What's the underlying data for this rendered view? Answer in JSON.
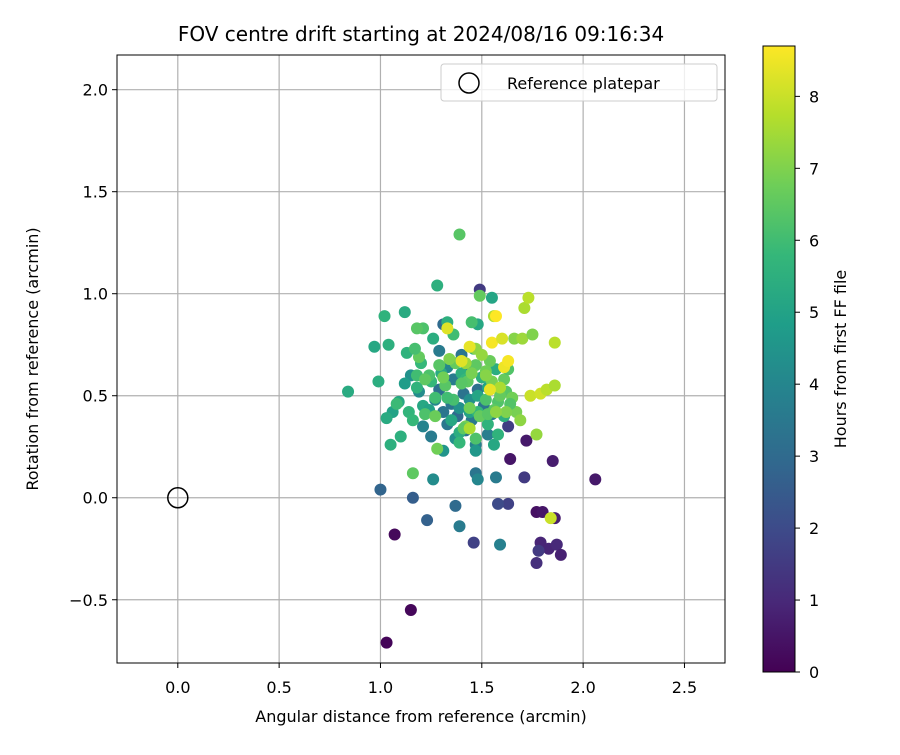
{
  "chart_data": {
    "type": "scatter",
    "title": "FOV centre drift starting at 2024/08/16 09:16:34",
    "xlabel": "Angular distance from reference (arcmin)",
    "ylabel": "Rotation from reference (arcmin)",
    "xlim": [
      -0.3,
      2.7
    ],
    "ylim": [
      -0.81,
      2.17
    ],
    "xticks": [
      0.0,
      0.5,
      1.0,
      1.5,
      2.0,
      2.5
    ],
    "xtick_labels": [
      "0.0",
      "0.5",
      "1.0",
      "1.5",
      "2.0",
      "2.5"
    ],
    "yticks": [
      -0.5,
      0.0,
      0.5,
      1.0,
      1.5,
      2.0
    ],
    "ytick_labels": [
      "−0.5",
      "0.0",
      "0.5",
      "1.0",
      "1.5",
      "2.0"
    ],
    "grid": true,
    "legend": {
      "placement": "top-right",
      "entries": [
        "Reference platepar"
      ]
    },
    "reference_point": {
      "x": 0.0,
      "y": 0.0,
      "label": "Reference platepar"
    },
    "colorbar": {
      "label": "Hours from first FF file",
      "min": 0,
      "max": 8.7,
      "colormap": "viridis",
      "ticks": [
        0,
        1,
        2,
        3,
        4,
        5,
        6,
        7,
        8
      ],
      "tick_labels": [
        "0",
        "1",
        "2",
        "3",
        "4",
        "5",
        "6",
        "7",
        "8"
      ]
    },
    "colormap_stops": [
      "#440154",
      "#482878",
      "#3e4989",
      "#31688e",
      "#26828e",
      "#1f9e89",
      "#35b779",
      "#6ece58",
      "#b5de2b",
      "#fde725"
    ],
    "points": [
      [
        1.03,
        -0.71,
        0.1
      ],
      [
        1.15,
        -0.55,
        0.15
      ],
      [
        1.07,
        -0.18,
        0.2
      ],
      [
        1.64,
        0.19,
        0.5
      ],
      [
        1.72,
        0.28,
        0.6
      ],
      [
        1.77,
        -0.07,
        0.4
      ],
      [
        1.8,
        -0.07,
        0.5
      ],
      [
        1.79,
        -0.22,
        0.9
      ],
      [
        1.83,
        -0.25,
        0.9
      ],
      [
        1.87,
        -0.23,
        1.0
      ],
      [
        1.89,
        -0.28,
        0.8
      ],
      [
        1.86,
        -0.1,
        0.7
      ],
      [
        2.06,
        0.09,
        0.6
      ],
      [
        1.85,
        0.18,
        0.7
      ],
      [
        1.77,
        -0.32,
        1.2
      ],
      [
        1.78,
        -0.26,
        1.5
      ],
      [
        1.46,
        -0.22,
        1.7
      ],
      [
        1.63,
        -0.03,
        1.7
      ],
      [
        1.58,
        -0.03,
        2.0
      ],
      [
        1.71,
        0.1,
        1.5
      ],
      [
        1.49,
        1.02,
        1.5
      ],
      [
        1.63,
        0.35,
        1.6
      ],
      [
        1.0,
        0.04,
        2.8
      ],
      [
        1.16,
        0.0,
        2.6
      ],
      [
        1.23,
        -0.11,
        2.7
      ],
      [
        1.37,
        -0.04,
        3.0
      ],
      [
        1.39,
        -0.14,
        3.6
      ],
      [
        1.59,
        -0.23,
        3.8
      ],
      [
        1.57,
        0.1,
        3.6
      ],
      [
        1.47,
        0.12,
        3.4
      ],
      [
        1.48,
        0.09,
        4.0
      ],
      [
        1.26,
        0.09,
        4.2
      ],
      [
        1.35,
        0.46,
        3.4
      ],
      [
        1.42,
        0.33,
        3.2
      ],
      [
        1.38,
        0.4,
        3.0
      ],
      [
        1.45,
        0.38,
        3.5
      ],
      [
        1.31,
        0.42,
        3.4
      ],
      [
        1.29,
        0.53,
        3.2
      ],
      [
        1.33,
        0.36,
        3.5
      ],
      [
        1.41,
        0.51,
        3.3
      ],
      [
        1.51,
        0.45,
        3.4
      ],
      [
        1.36,
        0.58,
        3.6
      ],
      [
        1.44,
        0.62,
        3.4
      ],
      [
        1.27,
        0.48,
        4.0
      ],
      [
        1.21,
        0.35,
        3.9
      ],
      [
        1.25,
        0.3,
        3.6
      ],
      [
        1.37,
        0.29,
        4.3
      ],
      [
        1.47,
        0.26,
        3.8
      ],
      [
        1.53,
        0.31,
        3.7
      ],
      [
        1.55,
        0.41,
        3.6
      ],
      [
        1.48,
        0.53,
        3.2
      ],
      [
        1.4,
        0.7,
        3.4
      ],
      [
        1.31,
        0.85,
        3.0
      ],
      [
        1.29,
        0.72,
        3.6
      ],
      [
        1.19,
        0.52,
        4.2
      ],
      [
        1.15,
        0.6,
        4.4
      ],
      [
        1.33,
        0.64,
        4.0
      ],
      [
        1.39,
        0.44,
        4.4
      ],
      [
        1.44,
        0.48,
        4.3
      ],
      [
        1.47,
        0.23,
        4.6
      ],
      [
        1.31,
        0.23,
        4.5
      ],
      [
        1.12,
        0.56,
        4.8
      ],
      [
        1.06,
        0.42,
        5.0
      ],
      [
        1.09,
        0.47,
        5.2
      ],
      [
        1.03,
        0.39,
        5.3
      ],
      [
        1.1,
        0.3,
        5.5
      ],
      [
        0.99,
        0.57,
        5.4
      ],
      [
        0.97,
        0.74,
        5.2
      ],
      [
        1.04,
        0.75,
        5.5
      ],
      [
        1.02,
        0.89,
        5.6
      ],
      [
        1.12,
        0.91,
        5.3
      ],
      [
        1.13,
        0.71,
        5.6
      ],
      [
        1.2,
        0.66,
        5.8
      ],
      [
        1.26,
        0.78,
        5.4
      ],
      [
        1.28,
        1.04,
        5.5
      ],
      [
        1.21,
        0.45,
        5.2
      ],
      [
        1.18,
        0.54,
        5.6
      ],
      [
        1.25,
        0.57,
        5.8
      ],
      [
        1.3,
        0.61,
        5.3
      ],
      [
        1.24,
        0.43,
        5.0
      ],
      [
        1.14,
        0.42,
        5.7
      ],
      [
        1.08,
        0.46,
        5.9
      ],
      [
        1.05,
        0.26,
        5.5
      ],
      [
        1.16,
        0.38,
        5.8
      ],
      [
        1.35,
        0.38,
        5.2
      ],
      [
        1.39,
        0.32,
        5.4
      ],
      [
        1.48,
        0.5,
        5.1
      ],
      [
        1.53,
        0.54,
        5.0
      ],
      [
        1.5,
        0.59,
        5.5
      ],
      [
        1.57,
        0.63,
        5.4
      ],
      [
        1.46,
        0.73,
        5.7
      ],
      [
        1.55,
        0.98,
        5.1
      ],
      [
        1.48,
        0.85,
        5.2
      ],
      [
        1.4,
        0.61,
        5.5
      ],
      [
        1.42,
        0.58,
        5.8
      ],
      [
        1.44,
        0.42,
        5.0
      ],
      [
        1.56,
        0.26,
        5.2
      ],
      [
        1.53,
        0.36,
        5.6
      ],
      [
        0.84,
        0.52,
        5.3
      ],
      [
        1.33,
        0.86,
        5.5
      ],
      [
        1.39,
        0.27,
        5.8
      ],
      [
        1.58,
        0.31,
        5.6
      ],
      [
        1.61,
        0.4,
        5.5
      ],
      [
        1.48,
        0.42,
        5.8
      ],
      [
        1.18,
        0.6,
        6.0
      ],
      [
        1.22,
        0.41,
        6.2
      ],
      [
        1.27,
        0.49,
        6.0
      ],
      [
        1.32,
        0.55,
        6.4
      ],
      [
        1.36,
        0.48,
        6.1
      ],
      [
        1.43,
        0.57,
        6.5
      ],
      [
        1.49,
        0.4,
        6.6
      ],
      [
        1.52,
        0.48,
        6.2
      ],
      [
        1.58,
        0.47,
        6.3
      ],
      [
        1.62,
        0.52,
        6.4
      ],
      [
        1.65,
        0.49,
        6.8
      ],
      [
        1.67,
        0.42,
        6.9
      ],
      [
        1.54,
        0.67,
        6.7
      ],
      [
        1.47,
        0.65,
        6.5
      ],
      [
        1.37,
        0.66,
        6.6
      ],
      [
        1.31,
        0.59,
        6.8
      ],
      [
        1.29,
        0.65,
        6.4
      ],
      [
        1.24,
        0.6,
        6.2
      ],
      [
        1.19,
        0.69,
        6.6
      ],
      [
        1.17,
        0.73,
        6.1
      ],
      [
        1.22,
        0.58,
        6.5
      ],
      [
        1.27,
        0.4,
        6.7
      ],
      [
        1.33,
        0.49,
        6.0
      ],
      [
        1.4,
        0.56,
        6.4
      ],
      [
        1.45,
        0.61,
        6.9
      ],
      [
        1.52,
        0.62,
        6.8
      ],
      [
        1.55,
        0.57,
        6.9
      ],
      [
        1.61,
        0.58,
        6.6
      ],
      [
        1.64,
        0.46,
        6.3
      ],
      [
        1.56,
        0.43,
        6.5
      ],
      [
        1.44,
        0.44,
        6.8
      ],
      [
        1.42,
        0.35,
        6.9
      ],
      [
        1.47,
        0.29,
        6.2
      ],
      [
        1.53,
        0.41,
        6.4
      ],
      [
        1.59,
        0.5,
        6.6
      ],
      [
        1.16,
        0.12,
        6.5
      ],
      [
        1.28,
        0.24,
        6.8
      ],
      [
        1.39,
        1.29,
        6.4
      ],
      [
        1.45,
        0.86,
        6.1
      ],
      [
        1.49,
        0.99,
        6.6
      ],
      [
        1.63,
        0.63,
        6.3
      ],
      [
        1.41,
        0.34,
        6.5
      ],
      [
        1.21,
        0.83,
        6.2
      ],
      [
        1.36,
        0.8,
        6.0
      ],
      [
        1.18,
        0.83,
        6.4
      ],
      [
        1.62,
        0.42,
        7.0
      ],
      [
        1.69,
        0.38,
        7.2
      ],
      [
        1.66,
        0.78,
        7.1
      ],
      [
        1.56,
        0.89,
        7.6
      ],
      [
        1.71,
        0.93,
        7.6
      ],
      [
        1.73,
        0.98,
        7.8
      ],
      [
        1.7,
        0.78,
        7.4
      ],
      [
        1.75,
        0.8,
        7.0
      ],
      [
        1.47,
        0.73,
        7.2
      ],
      [
        1.52,
        0.6,
        7.1
      ],
      [
        1.42,
        0.66,
        7.4
      ],
      [
        1.34,
        0.68,
        7.0
      ],
      [
        1.57,
        0.42,
        7.2
      ],
      [
        1.59,
        0.54,
        7.6
      ],
      [
        1.74,
        0.5,
        8.0
      ],
      [
        1.79,
        0.51,
        8.1
      ],
      [
        1.82,
        0.53,
        7.8
      ],
      [
        1.86,
        0.55,
        7.6
      ],
      [
        1.86,
        0.76,
        7.8
      ],
      [
        1.77,
        0.31,
        7.3
      ],
      [
        1.84,
        -0.1,
        8.0
      ],
      [
        1.44,
        0.34,
        7.6
      ],
      [
        1.5,
        0.7,
        7.3
      ],
      [
        1.33,
        0.83,
        8.3
      ],
      [
        1.4,
        0.67,
        8.3
      ],
      [
        1.44,
        0.74,
        8.4
      ],
      [
        1.55,
        0.76,
        8.6
      ],
      [
        1.54,
        0.53,
        8.4
      ],
      [
        1.61,
        0.64,
        8.5
      ],
      [
        1.63,
        0.67,
        8.6
      ],
      [
        1.6,
        0.78,
        8.2
      ],
      [
        1.57,
        0.89,
        8.7
      ]
    ]
  }
}
